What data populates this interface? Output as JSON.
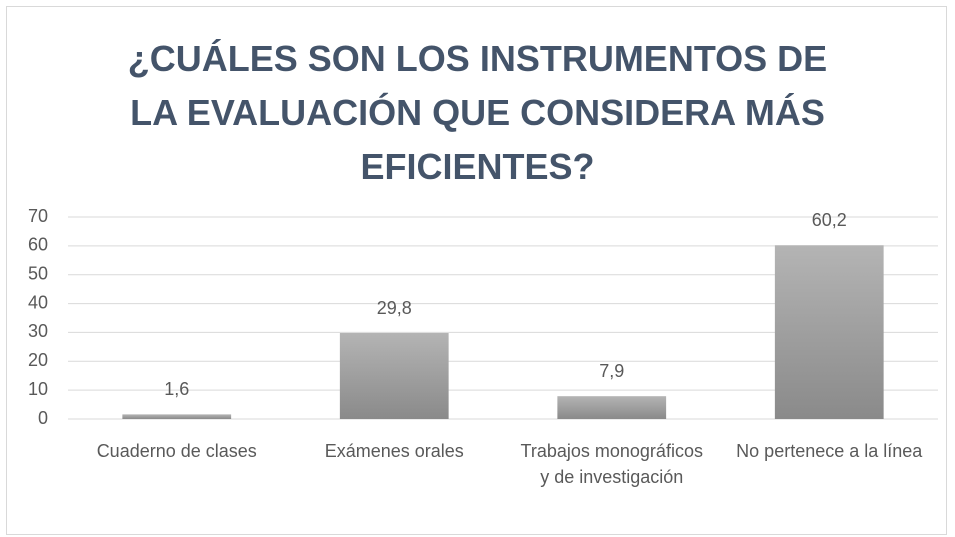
{
  "chart_data": {
    "type": "bar",
    "title": "¿CUÁLES SON LOS INSTRUMENTOS DE LA EVALUACIÓN QUE CONSIDERA MÁS EFICIENTES?",
    "categories": [
      "Cuaderno de clases",
      "Exámenes orales",
      "Trabajos monográficos y de investigación",
      "No pertenece a la línea"
    ],
    "values": [
      1.6,
      29.8,
      7.9,
      60.2
    ],
    "value_labels": [
      "1,6",
      "29,8",
      "7,9",
      "60,2"
    ],
    "color": "#a0a0a0",
    "ylim": [
      0,
      70
    ],
    "yticks": [
      0,
      10,
      20,
      30,
      40,
      50,
      60,
      70
    ],
    "grid": true
  }
}
